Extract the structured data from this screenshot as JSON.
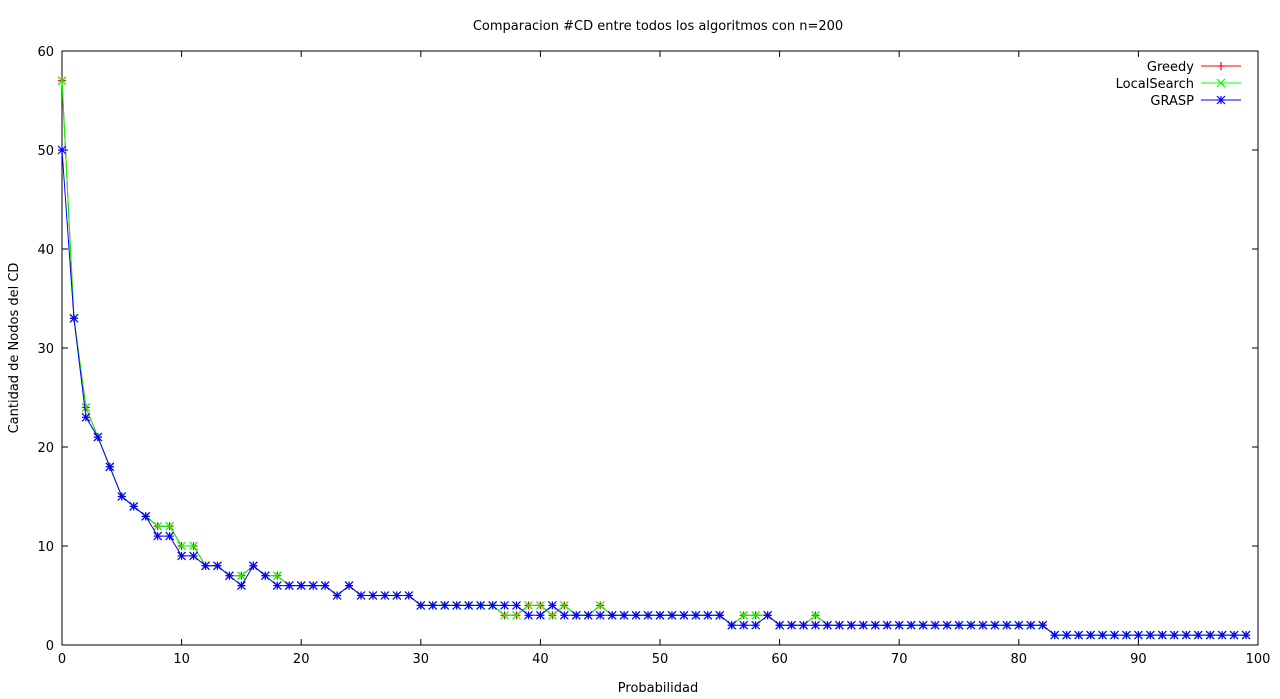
{
  "chart_data": {
    "type": "line",
    "title": "Comparacion #CD entre todos los algoritmos con n=200",
    "xlabel": "Probabilidad",
    "ylabel": "Cantidad de Nodos del CD",
    "xlim": [
      0,
      100
    ],
    "ylim": [
      0,
      60
    ],
    "x_ticks": [
      0,
      10,
      20,
      30,
      40,
      50,
      60,
      70,
      80,
      90,
      100
    ],
    "y_ticks": [
      0,
      10,
      20,
      30,
      40,
      50,
      60
    ],
    "grid": false,
    "legend_position": "top-right",
    "x": [
      0,
      1,
      2,
      3,
      4,
      5,
      6,
      7,
      8,
      9,
      10,
      11,
      12,
      13,
      14,
      15,
      16,
      17,
      18,
      19,
      20,
      21,
      22,
      23,
      24,
      25,
      26,
      27,
      28,
      29,
      30,
      31,
      32,
      33,
      34,
      35,
      36,
      37,
      38,
      39,
      40,
      41,
      42,
      43,
      44,
      45,
      46,
      47,
      48,
      49,
      50,
      51,
      52,
      53,
      54,
      55,
      56,
      57,
      58,
      59,
      60,
      61,
      62,
      63,
      64,
      65,
      66,
      67,
      68,
      69,
      70,
      71,
      72,
      73,
      74,
      75,
      76,
      77,
      78,
      79,
      80,
      81,
      82,
      83,
      84,
      85,
      86,
      87,
      88,
      89,
      90,
      91,
      92,
      93,
      94,
      95,
      96,
      97,
      98,
      99
    ],
    "series": [
      {
        "name": "Greedy",
        "color": "#ff0000",
        "marker": "plus",
        "values": [
          57,
          33,
          24,
          21,
          18,
          15,
          14,
          13,
          12,
          12,
          10,
          10,
          8,
          8,
          7,
          7,
          8,
          7,
          7,
          6,
          6,
          6,
          6,
          5,
          6,
          5,
          5,
          5,
          5,
          5,
          4,
          4,
          4,
          4,
          4,
          4,
          4,
          3,
          3,
          4,
          4,
          3,
          4,
          3,
          3,
          4,
          3,
          3,
          3,
          3,
          3,
          3,
          3,
          3,
          3,
          3,
          2,
          3,
          3,
          3,
          2,
          2,
          2,
          3,
          2,
          2,
          2,
          2,
          2,
          2,
          2,
          2,
          2,
          2,
          2,
          2,
          2,
          2,
          2,
          2,
          2,
          2,
          2,
          1,
          1,
          1,
          1,
          1,
          1,
          1,
          1,
          1,
          1,
          1,
          1,
          1,
          1,
          1,
          1,
          1
        ]
      },
      {
        "name": "LocalSearch",
        "color": "#00ff00",
        "marker": "x",
        "values": [
          57,
          33,
          24,
          21,
          18,
          15,
          14,
          13,
          12,
          12,
          10,
          10,
          8,
          8,
          7,
          7,
          8,
          7,
          7,
          6,
          6,
          6,
          6,
          5,
          6,
          5,
          5,
          5,
          5,
          5,
          4,
          4,
          4,
          4,
          4,
          4,
          4,
          3,
          3,
          4,
          4,
          3,
          4,
          3,
          3,
          4,
          3,
          3,
          3,
          3,
          3,
          3,
          3,
          3,
          3,
          3,
          2,
          3,
          3,
          3,
          2,
          2,
          2,
          3,
          2,
          2,
          2,
          2,
          2,
          2,
          2,
          2,
          2,
          2,
          2,
          2,
          2,
          2,
          2,
          2,
          2,
          2,
          2,
          1,
          1,
          1,
          1,
          1,
          1,
          1,
          1,
          1,
          1,
          1,
          1,
          1,
          1,
          1,
          1,
          1
        ]
      },
      {
        "name": "GRASP",
        "color": "#0000ff",
        "marker": "star",
        "values": [
          50,
          33,
          23,
          21,
          18,
          15,
          14,
          13,
          11,
          11,
          9,
          9,
          8,
          8,
          7,
          6,
          8,
          7,
          6,
          6,
          6,
          6,
          6,
          5,
          6,
          5,
          5,
          5,
          5,
          5,
          4,
          4,
          4,
          4,
          4,
          4,
          4,
          4,
          4,
          3,
          3,
          4,
          3,
          3,
          3,
          3,
          3,
          3,
          3,
          3,
          3,
          3,
          3,
          3,
          3,
          3,
          2,
          2,
          2,
          3,
          2,
          2,
          2,
          2,
          2,
          2,
          2,
          2,
          2,
          2,
          2,
          2,
          2,
          2,
          2,
          2,
          2,
          2,
          2,
          2,
          2,
          2,
          2,
          1,
          1,
          1,
          1,
          1,
          1,
          1,
          1,
          1,
          1,
          1,
          1,
          1,
          1,
          1,
          1,
          1
        ]
      }
    ]
  }
}
